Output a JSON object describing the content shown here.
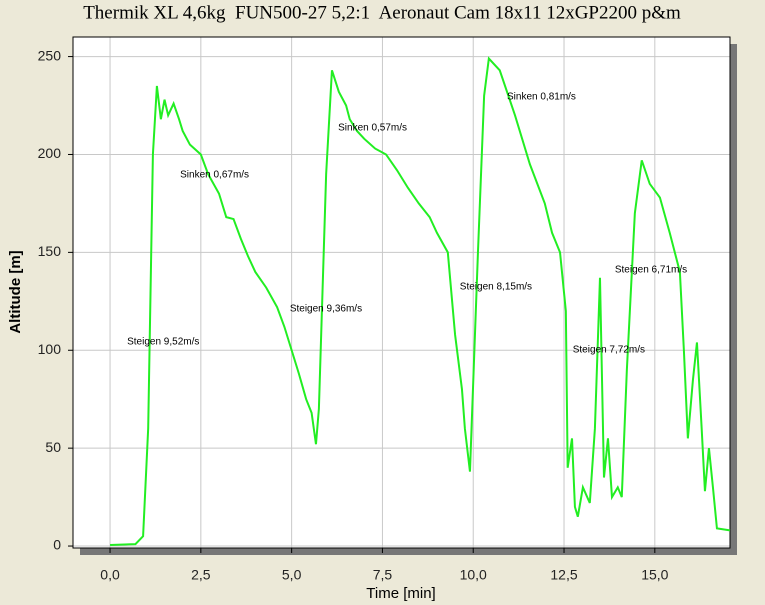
{
  "chart_data": {
    "type": "line",
    "title": "Thermik XL 4,6kg  FUN500-27 5,2:1  Aeronaut Cam 18x11 12xGP2200 p&m",
    "x_label": "Time [min]",
    "y_label": "Altitude [m]",
    "xlim": [
      -1.02,
      17.07
    ],
    "ylim": [
      -1,
      260
    ],
    "xticks": [
      {
        "value": 0,
        "label": "0,0"
      },
      {
        "value": 2.5,
        "label": "2,5"
      },
      {
        "value": 5,
        "label": "5,0"
      },
      {
        "value": 7.5,
        "label": "7,5"
      },
      {
        "value": 10,
        "label": "10,0"
      },
      {
        "value": 12.5,
        "label": "12,5"
      },
      {
        "value": 15,
        "label": "15,0"
      }
    ],
    "yticks": [
      0,
      50,
      100,
      150,
      200,
      250
    ],
    "grid": true,
    "series": [
      {
        "color": "#22ee22",
        "x": [
          0,
          0.7,
          0.91,
          1.05,
          1.18,
          1.29,
          1.4,
          1.5,
          1.6,
          1.75,
          1.9,
          2.0,
          2.2,
          2.5,
          2.7,
          3.0,
          3.2,
          3.4,
          3.6,
          3.8,
          4.0,
          4.3,
          4.6,
          4.8,
          5.0,
          5.2,
          5.4,
          5.55,
          5.67,
          5.75,
          5.85,
          5.95,
          6.11,
          6.3,
          6.5,
          6.6,
          6.8,
          7.0,
          7.3,
          7.6,
          7.9,
          8.2,
          8.5,
          8.8,
          9.0,
          9.3,
          9.5,
          9.69,
          9.77,
          9.91,
          10.13,
          10.3,
          10.43,
          10.73,
          11.15,
          11.56,
          11.97,
          12.17,
          12.39,
          12.55,
          12.6,
          12.72,
          12.8,
          12.88,
          13.02,
          13.21,
          13.35,
          13.49,
          13.6,
          13.71,
          13.82,
          13.98,
          14.09,
          14.23,
          14.45,
          14.64,
          14.86,
          15.14,
          15.41,
          15.69,
          15.8,
          15.91,
          16.05,
          16.16,
          16.29,
          16.38,
          16.49,
          16.6,
          16.71,
          17.07
        ],
        "values": [
          0.5,
          1,
          5,
          60,
          200,
          235,
          218,
          228,
          220,
          226,
          218,
          212,
          205,
          200,
          190,
          180,
          168,
          167,
          157,
          148,
          140,
          132,
          122,
          112,
          100,
          88,
          75,
          68,
          52,
          70,
          130,
          190,
          243,
          232,
          225,
          218,
          212,
          208,
          203,
          200,
          192,
          183,
          175,
          168,
          160,
          150,
          108,
          80,
          60,
          38,
          150,
          230,
          249,
          243,
          220,
          195,
          175,
          160,
          150,
          120,
          40,
          55,
          20,
          15,
          30,
          22,
          60,
          137,
          35,
          55,
          25,
          30,
          25,
          90,
          170,
          197,
          185,
          178,
          160,
          140,
          100,
          55,
          85,
          104,
          60,
          28,
          50,
          30,
          9,
          8
        ]
      }
    ],
    "annotations": [
      {
        "text": "Steigen 9,52m/s",
        "x": 0.47,
        "y": 104.3
      },
      {
        "text": "Sinken 0,67m/s",
        "x": 1.93,
        "y": 189.7
      },
      {
        "text": "Steigen 9,36m/s",
        "x": 4.95,
        "y": 121.2
      },
      {
        "text": "Sinken 0,57m/s",
        "x": 6.28,
        "y": 213.7
      },
      {
        "text": "Steigen 8,15m/s",
        "x": 9.63,
        "y": 132.4
      },
      {
        "text": "Sinken 0,81m/s",
        "x": 10.93,
        "y": 229.5
      },
      {
        "text": "Steigen 7,72m/s",
        "x": 12.74,
        "y": 100.2
      },
      {
        "text": "Steigen 6,71m/s",
        "x": 13.9,
        "y": 141.1
      }
    ]
  }
}
